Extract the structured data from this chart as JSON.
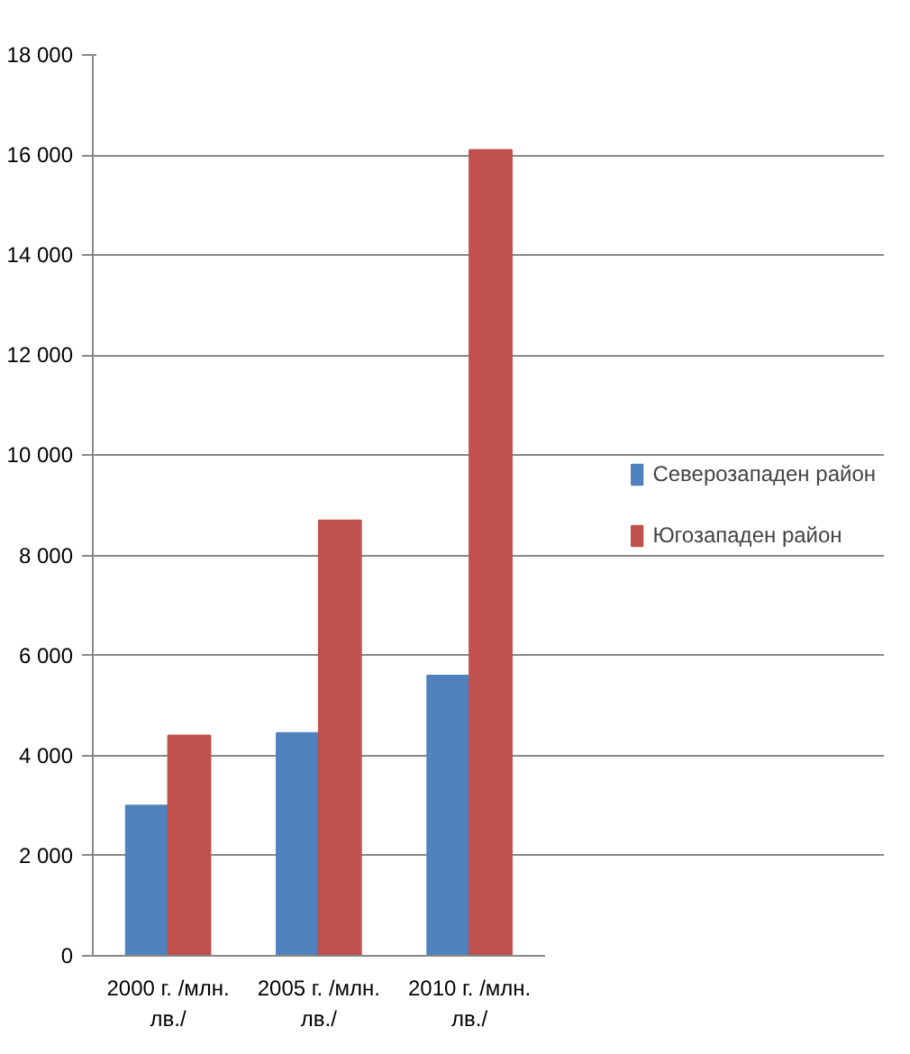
{
  "chart_data": {
    "type": "bar",
    "categories": [
      "2000 г. /млн. лв./",
      "2005 г. /млн. лв./",
      "2010 г. /млн. лв./"
    ],
    "series": [
      {
        "name": "Северозападен район",
        "color": "#4f81bd",
        "values": [
          3000,
          4450,
          5600
        ]
      },
      {
        "name": "Югозападен район",
        "color": "#c0504d",
        "values": [
          4400,
          8700,
          16100
        ]
      }
    ],
    "ylim": [
      0,
      18000
    ],
    "yticks": [
      {
        "value": 0,
        "label": "0"
      },
      {
        "value": 2000,
        "label": "2 000"
      },
      {
        "value": 4000,
        "label": "4 000"
      },
      {
        "value": 6000,
        "label": "6 000"
      },
      {
        "value": 8000,
        "label": "8 000"
      },
      {
        "value": 10000,
        "label": "10 000"
      },
      {
        "value": 12000,
        "label": "12 000"
      },
      {
        "value": 14000,
        "label": "14 000"
      },
      {
        "value": 16000,
        "label": "16 000"
      },
      {
        "value": 18000,
        "label": "18 000"
      }
    ],
    "grid": "y",
    "legend": "right"
  }
}
